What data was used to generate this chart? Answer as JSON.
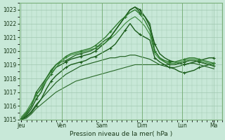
{
  "title": "",
  "xlabel": "Pression niveau de la mer( hPa )",
  "ylabel": "",
  "bg_color": "#c8e8d8",
  "plot_bg_color": "#c8e8d8",
  "grid_color": "#a0c8b0",
  "line_color_dark": "#1a5c1a",
  "line_color_mid": "#2d7a2d",
  "line_color_light": "#3d8c3d",
  "ylim": [
    1015,
    1023.5
  ],
  "yticks": [
    1015,
    1016,
    1017,
    1018,
    1019,
    1020,
    1021,
    1022,
    1023
  ],
  "x_day_labels": [
    "Jeu",
    "Ven",
    "Sam",
    "Dim",
    "Lun",
    "Ma"
  ],
  "x_day_positions": [
    0,
    1,
    2,
    3,
    4,
    5
  ],
  "series": [
    [
      1015.0,
      1015.2,
      1015.5,
      1016.0,
      1016.5,
      1017.2,
      1017.8,
      1018.2,
      1018.5,
      1018.8,
      1019.0,
      1019.1,
      1019.2,
      1019.3,
      1019.5,
      1019.6,
      1019.8,
      1020.0,
      1020.2,
      1020.5,
      1021.0,
      1021.5,
      1022.0,
      1021.5,
      1021.2,
      1021.0,
      1020.8,
      1019.5,
      1019.2,
      1019.0,
      1018.8,
      1018.7,
      1018.5,
      1018.4,
      1018.5,
      1018.6,
      1018.8,
      1018.9,
      1019.0,
      1019.1
    ],
    [
      1015.1,
      1015.5,
      1016.0,
      1017.0,
      1017.5,
      1018.0,
      1018.5,
      1019.0,
      1019.2,
      1019.3,
      1019.5,
      1019.7,
      1019.8,
      1019.9,
      1020.0,
      1020.2,
      1020.5,
      1020.8,
      1021.0,
      1021.5,
      1022.0,
      1022.5,
      1023.0,
      1023.2,
      1022.8,
      1022.5,
      1022.0,
      1020.0,
      1019.5,
      1019.2,
      1019.0,
      1019.0,
      1019.1,
      1019.2,
      1019.3,
      1019.3,
      1019.2,
      1019.1,
      1019.0,
      1018.9
    ],
    [
      1015.0,
      1015.3,
      1015.8,
      1016.5,
      1017.0,
      1017.8,
      1018.3,
      1018.8,
      1019.0,
      1019.2,
      1019.4,
      1019.5,
      1019.6,
      1019.7,
      1019.8,
      1020.0,
      1020.3,
      1020.6,
      1021.0,
      1021.5,
      1022.0,
      1022.5,
      1023.0,
      1023.2,
      1023.0,
      1022.5,
      1021.8,
      1020.5,
      1019.8,
      1019.5,
      1019.3,
      1019.2,
      1019.1,
      1019.0,
      1019.1,
      1019.2,
      1019.3,
      1019.4,
      1019.5,
      1019.5
    ],
    [
      1015.0,
      1015.4,
      1016.0,
      1016.8,
      1017.3,
      1018.0,
      1018.6,
      1019.0,
      1019.3,
      1019.6,
      1019.8,
      1019.9,
      1020.0,
      1020.1,
      1020.2,
      1020.4,
      1020.7,
      1021.0,
      1021.4,
      1021.8,
      1022.2,
      1022.5,
      1022.8,
      1023.0,
      1022.7,
      1022.2,
      1021.5,
      1020.0,
      1019.5,
      1019.3,
      1019.2,
      1019.2,
      1019.3,
      1019.4,
      1019.5,
      1019.5,
      1019.4,
      1019.3,
      1019.2,
      1019.1
    ],
    [
      1015.2,
      1015.6,
      1016.2,
      1016.8,
      1017.2,
      1017.8,
      1018.3,
      1018.8,
      1019.2,
      1019.5,
      1019.7,
      1019.8,
      1019.9,
      1020.0,
      1020.1,
      1020.2,
      1020.4,
      1020.6,
      1020.9,
      1021.2,
      1021.6,
      1022.0,
      1022.3,
      1022.5,
      1022.2,
      1021.8,
      1021.2,
      1019.8,
      1019.4,
      1019.2,
      1019.1,
      1019.1,
      1019.2,
      1019.3,
      1019.4,
      1019.4,
      1019.3,
      1019.2,
      1019.1,
      1019.0
    ],
    [
      1015.0,
      1015.2,
      1015.6,
      1016.1,
      1016.5,
      1016.9,
      1017.3,
      1017.7,
      1018.0,
      1018.3,
      1018.5,
      1018.7,
      1018.9,
      1019.0,
      1019.1,
      1019.2,
      1019.3,
      1019.4,
      1019.5,
      1019.5,
      1019.6,
      1019.6,
      1019.7,
      1019.7,
      1019.6,
      1019.5,
      1019.4,
      1019.2,
      1019.0,
      1018.9,
      1018.8,
      1018.8,
      1018.9,
      1019.0,
      1019.1,
      1019.1,
      1019.0,
      1018.9,
      1018.8,
      1018.7
    ],
    [
      1015.0,
      1015.1,
      1015.4,
      1015.8,
      1016.1,
      1016.4,
      1016.7,
      1017.0,
      1017.2,
      1017.4,
      1017.6,
      1017.8,
      1017.9,
      1018.0,
      1018.1,
      1018.2,
      1018.3,
      1018.4,
      1018.5,
      1018.6,
      1018.7,
      1018.8,
      1018.9,
      1019.0,
      1019.0,
      1019.0,
      1019.0,
      1019.0,
      1019.0,
      1019.0,
      1019.0,
      1019.0,
      1019.1,
      1019.2,
      1019.3,
      1019.3,
      1019.2,
      1019.1,
      1019.0,
      1018.9
    ]
  ],
  "marker_series": [
    0,
    1,
    2,
    3
  ],
  "n_days": 5,
  "total_points": 40,
  "minor_grid_count": 8
}
